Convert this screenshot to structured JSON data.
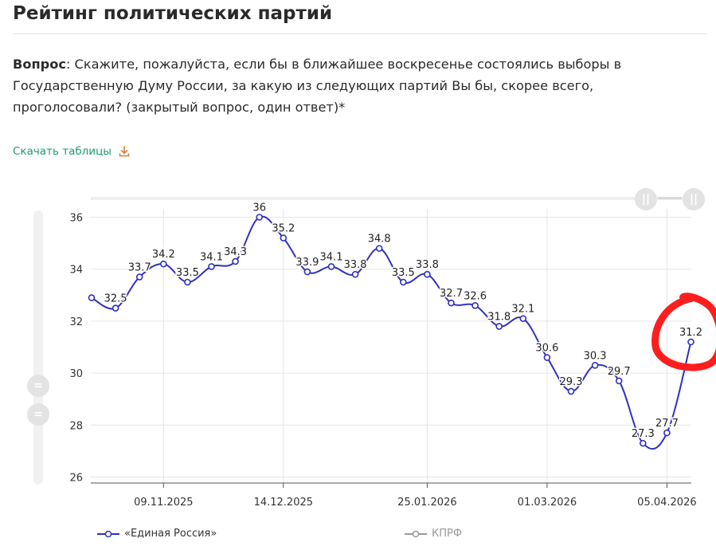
{
  "page": {
    "title": "Рейтинг политических партий",
    "question_label": "Вопрос",
    "question_text": ": Скажите, пожалуйста, если бы в ближайшее воскресенье состоялись выборы в Государственную Думу России, за какую из следующих партий Вы бы, скорее всего, проголосовали? (закрытый вопрос, один ответ)*",
    "download_label": "Скачать таблицы",
    "download_icon": "download-icon",
    "range_handle_left": "||",
    "range_handle_right": "||",
    "vscroll_handle_top": "=",
    "vscroll_handle_bottom": "="
  },
  "colors": {
    "accent_green": "#1f9a6b",
    "download_icon": "#e0782a",
    "series_er": "#3030c0",
    "series_kprf": "#9a9a9a",
    "annotation": "#ff1e1e"
  },
  "chart_data": {
    "type": "line",
    "title": "",
    "xlabel": "",
    "ylabel": "",
    "ylim": [
      26,
      36.5
    ],
    "yticks": [
      26,
      28,
      30,
      32,
      34,
      36
    ],
    "xticks": [
      {
        "label": "09.11.2025",
        "i": 3
      },
      {
        "label": "14.12.2025",
        "i": 8
      },
      {
        "label": "25.01.2026",
        "i": 14
      },
      {
        "label": "01.03.2026",
        "i": 19
      },
      {
        "label": "05.04.2026",
        "i": 24
      }
    ],
    "grid": true,
    "legend_position": "bottom-left",
    "series": [
      {
        "name": "«Единая Россия»",
        "visible": true,
        "values": [
          32.9,
          32.5,
          33.7,
          34.2,
          33.5,
          34.1,
          34.3,
          36.0,
          35.2,
          33.9,
          34.1,
          33.8,
          34.8,
          33.5,
          33.8,
          32.7,
          32.6,
          31.8,
          32.1,
          30.6,
          29.3,
          30.3,
          29.7,
          27.3,
          27.7,
          31.2
        ],
        "labels": [
          "",
          "32.5",
          "33.7",
          "34.2",
          "33.5",
          "34.1",
          "34.3",
          "36",
          "35.2",
          "33.9",
          "34.1",
          "33.8",
          "34.8",
          "33.5",
          "33.8",
          "32.7",
          "32.6",
          "31.8",
          "32.1",
          "30.6",
          "29.3",
          "30.3",
          "29.7",
          "27.3",
          "27.7",
          "31.2"
        ]
      },
      {
        "name": "КПРФ",
        "visible": false,
        "values": []
      }
    ],
    "annotation": {
      "type": "circle",
      "target_index": 25,
      "color": "#ff1e1e"
    }
  }
}
